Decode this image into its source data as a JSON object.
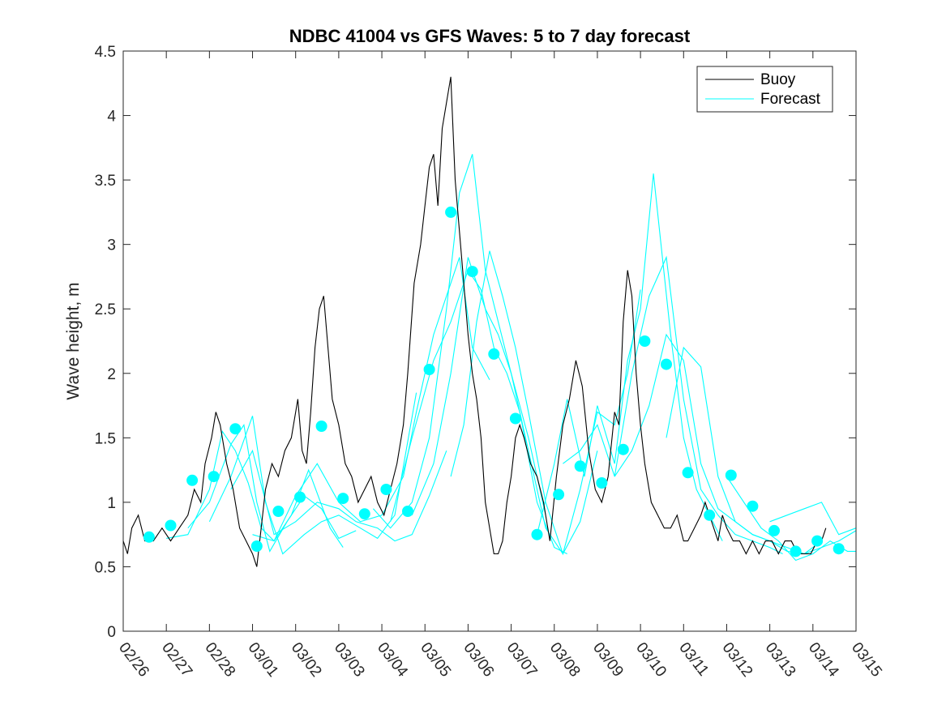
{
  "chart_data": {
    "type": "line",
    "title": "NDBC 41004 vs GFS Waves: 5 to 7 day forecast",
    "xlabel": "",
    "ylabel": "Wave height, m",
    "ylim": [
      0,
      4.5
    ],
    "xlim": [
      0,
      17
    ],
    "yticks": [
      0,
      0.5,
      1,
      1.5,
      2,
      2.5,
      3,
      3.5,
      4,
      4.5
    ],
    "ytick_labels": [
      "0",
      "0.5",
      "1",
      "1.5",
      "2",
      "2.5",
      "3",
      "3.5",
      "4",
      "4.5"
    ],
    "xtick_labels": [
      "02/26",
      "02/27",
      "02/28",
      "03/01",
      "03/02",
      "03/03",
      "03/04",
      "03/05",
      "03/06",
      "03/07",
      "03/08",
      "03/09",
      "03/10",
      "03/11",
      "03/12",
      "03/13",
      "03/14",
      "03/15"
    ],
    "legend": {
      "location": "top-right",
      "entries": [
        "Buoy",
        "Forecast"
      ]
    },
    "colors": {
      "buoy": "#000000",
      "forecast": "#00ffff"
    },
    "series": [
      {
        "name": "Buoy",
        "x": [
          0,
          0.1,
          0.2,
          0.35,
          0.5,
          0.7,
          0.9,
          1.1,
          1.3,
          1.5,
          1.65,
          1.8,
          1.9,
          2.05,
          2.15,
          2.25,
          2.4,
          2.55,
          2.7,
          2.85,
          3.0,
          3.1,
          3.2,
          3.3,
          3.45,
          3.6,
          3.75,
          3.9,
          4.05,
          4.15,
          4.25,
          4.35,
          4.45,
          4.55,
          4.65,
          4.75,
          4.85,
          5.0,
          5.15,
          5.3,
          5.45,
          5.6,
          5.75,
          5.9,
          6.05,
          6.2,
          6.35,
          6.5,
          6.6,
          6.75,
          6.9,
          7.0,
          7.1,
          7.2,
          7.3,
          7.4,
          7.5,
          7.6,
          7.7,
          7.8,
          7.9,
          8.0,
          8.1,
          8.2,
          8.3,
          8.4,
          8.5,
          8.6,
          8.7,
          8.8,
          8.9,
          9.0,
          9.1,
          9.2,
          9.3,
          9.45,
          9.6,
          9.75,
          9.9,
          10.05,
          10.2,
          10.35,
          10.5,
          10.65,
          10.8,
          10.95,
          11.1,
          11.25,
          11.4,
          11.5,
          11.6,
          11.7,
          11.8,
          11.9,
          12.0,
          12.1,
          12.25,
          12.4,
          12.55,
          12.7,
          12.85,
          13.0,
          13.1,
          13.25,
          13.4,
          13.5,
          13.6,
          13.7,
          13.8,
          13.9,
          14.0,
          14.15,
          14.3,
          14.45,
          14.6,
          14.75,
          14.9,
          15.05,
          15.2,
          15.35,
          15.5,
          15.65,
          15.8,
          15.95,
          16.1,
          16.2,
          16.3
        ],
        "y": [
          0.7,
          0.6,
          0.8,
          0.9,
          0.7,
          0.7,
          0.8,
          0.7,
          0.8,
          0.9,
          1.1,
          1.0,
          1.3,
          1.5,
          1.7,
          1.6,
          1.3,
          1.1,
          0.8,
          0.7,
          0.6,
          0.5,
          0.8,
          1.1,
          1.3,
          1.2,
          1.4,
          1.5,
          1.8,
          1.4,
          1.3,
          1.7,
          2.2,
          2.5,
          2.6,
          2.2,
          1.8,
          1.6,
          1.3,
          1.2,
          1.0,
          1.1,
          1.2,
          1.0,
          0.9,
          1.1,
          1.3,
          1.6,
          2.0,
          2.7,
          3.0,
          3.3,
          3.6,
          3.7,
          3.3,
          3.9,
          4.1,
          4.3,
          3.5,
          3.1,
          2.7,
          2.3,
          2.0,
          1.8,
          1.5,
          1.0,
          0.8,
          0.6,
          0.6,
          0.7,
          1.0,
          1.2,
          1.5,
          1.6,
          1.5,
          1.3,
          1.2,
          1.0,
          0.7,
          1.2,
          1.6,
          1.8,
          2.1,
          1.9,
          1.4,
          1.1,
          1.0,
          1.2,
          1.7,
          1.6,
          2.4,
          2.8,
          2.6,
          2.0,
          1.6,
          1.3,
          1.0,
          0.9,
          0.8,
          0.8,
          0.9,
          0.7,
          0.7,
          0.8,
          0.9,
          1.0,
          0.9,
          0.8,
          0.7,
          0.9,
          0.8,
          0.7,
          0.7,
          0.6,
          0.7,
          0.6,
          0.7,
          0.7,
          0.6,
          0.7,
          0.7,
          0.6,
          0.6,
          0.6,
          0.7,
          0.7,
          0.8
        ]
      },
      {
        "name": "Forecast",
        "runs": [
          {
            "x": [
              1.0,
              1.5,
              2.0,
              2.3,
              2.6,
              2.9,
              3.2,
              3.5,
              3.9,
              4.3,
              4.8,
              5.1
            ],
            "y": [
              0.72,
              0.75,
              1.1,
              1.55,
              1.4,
              1.15,
              0.8,
              0.7,
              0.9,
              1.25,
              0.8,
              0.65
            ]
          },
          {
            "x": [
              1.5,
              2.0,
              2.5,
              2.8,
              3.1,
              3.4,
              3.8,
              4.2,
              4.6,
              5.0,
              5.4
            ],
            "y": [
              0.8,
              1.0,
              1.45,
              1.6,
              1.0,
              0.62,
              0.85,
              1.05,
              0.95,
              0.72,
              0.78
            ]
          },
          {
            "x": [
              2.0,
              2.5,
              3.0,
              3.3,
              3.7,
              4.2,
              4.6,
              5.0,
              5.5,
              5.9,
              6.3,
              6.8
            ],
            "y": [
              0.85,
              1.2,
              1.67,
              1.0,
              0.6,
              0.75,
              0.85,
              0.9,
              0.8,
              0.72,
              0.9,
              1.85
            ]
          },
          {
            "x": [
              2.5,
              3.0,
              3.5,
              4.0,
              4.5,
              5.0,
              5.4,
              5.9,
              6.3,
              6.7,
              7.1,
              7.5
            ],
            "y": [
              1.1,
              1.4,
              0.75,
              0.85,
              1.0,
              0.95,
              0.85,
              0.8,
              0.7,
              0.75,
              1.05,
              1.4
            ]
          },
          {
            "x": [
              3.0,
              3.5,
              4.0,
              4.5,
              5.0,
              5.5,
              6.0,
              6.5,
              6.8,
              7.2,
              7.5,
              7.8,
              8.1,
              8.5
            ],
            "y": [
              0.75,
              0.7,
              1.05,
              1.3,
              1.0,
              0.85,
              0.9,
              1.2,
              1.7,
              2.3,
              2.6,
              2.9,
              2.2,
              1.95
            ]
          },
          {
            "x": [
              5.8,
              6.2,
              6.7,
              7.1,
              7.5,
              7.8,
              8.1,
              8.4,
              8.7,
              9.0,
              9.4,
              9.8
            ],
            "y": [
              0.95,
              0.8,
              1.0,
              1.5,
              2.5,
              3.4,
              3.7,
              2.8,
              2.4,
              2.0,
              1.5,
              0.9
            ]
          },
          {
            "x": [
              6.2,
              6.7,
              7.2,
              7.6,
              8.0,
              8.3,
              8.6,
              8.9,
              9.2,
              9.6,
              10.0,
              10.3
            ],
            "y": [
              0.85,
              1.5,
              2.1,
              2.4,
              2.8,
              2.65,
              2.2,
              2.0,
              1.7,
              1.0,
              0.65,
              0.6
            ]
          },
          {
            "x": [
              6.7,
              7.2,
              7.6,
              8.0,
              8.4,
              8.7,
              9.0,
              9.4,
              9.8,
              10.2,
              10.6,
              11.0
            ],
            "y": [
              0.9,
              1.3,
              2.0,
              2.9,
              2.5,
              2.3,
              2.0,
              1.4,
              0.8,
              0.6,
              0.85,
              1.4
            ]
          },
          {
            "x": [
              7.6,
              7.9,
              8.2,
              8.5,
              8.8,
              9.1,
              9.4,
              9.8,
              10.2,
              10.6,
              11.0,
              11.4,
              11.7,
              12.0
            ],
            "y": [
              1.2,
              1.6,
              2.4,
              2.95,
              2.6,
              2.2,
              1.7,
              1.0,
              0.6,
              1.1,
              1.7,
              1.6,
              2.0,
              2.65
            ]
          },
          {
            "x": [
              9.6,
              10.0,
              10.3,
              10.7,
              11.0,
              11.4,
              11.7,
              12.0,
              12.3,
              12.7,
              13.0,
              13.3,
              13.6,
              13.9
            ],
            "y": [
              0.75,
              1.3,
              1.8,
              1.2,
              1.75,
              1.3,
              2.1,
              2.5,
              3.55,
              2.3,
              1.5,
              1.1,
              0.9,
              0.7
            ]
          },
          {
            "x": [
              10.2,
              10.6,
              11.0,
              11.4,
              11.8,
              12.2,
              12.6,
              13.0,
              13.4,
              13.8,
              14.2,
              14.6,
              15.0,
              15.3
            ],
            "y": [
              1.3,
              1.4,
              1.6,
              1.2,
              2.0,
              2.6,
              2.9,
              1.8,
              1.1,
              0.9,
              0.75,
              0.7,
              0.65,
              0.6
            ]
          },
          {
            "x": [
              11.4,
              11.8,
              12.2,
              12.6,
              13.0,
              13.4,
              13.8,
              14.2,
              14.6,
              15.0,
              15.4,
              15.8,
              16.2
            ],
            "y": [
              1.2,
              1.4,
              1.75,
              2.3,
              2.1,
              1.3,
              0.95,
              0.85,
              0.75,
              0.7,
              0.65,
              0.6,
              0.7
            ]
          },
          {
            "x": [
              12.6,
              13.0,
              13.4,
              13.8,
              14.2,
              14.6,
              15.0,
              15.4,
              15.8,
              16.2,
              16.6,
              17.0
            ],
            "y": [
              1.5,
              2.2,
              2.05,
              1.2,
              0.85,
              0.75,
              0.7,
              0.62,
              0.6,
              0.65,
              0.7,
              0.78
            ]
          },
          {
            "x": [
              14.0,
              14.4,
              14.8,
              15.2,
              15.6,
              16.0,
              16.4,
              16.8,
              17.0
            ],
            "y": [
              1.2,
              1.0,
              0.8,
              0.7,
              0.55,
              0.6,
              0.7,
              0.62,
              0.62
            ]
          },
          {
            "x": [
              15.0,
              15.4,
              15.8,
              16.2,
              16.6,
              17.0
            ],
            "y": [
              0.85,
              0.9,
              0.95,
              1.0,
              0.75,
              0.8
            ]
          }
        ],
        "markers": {
          "x": [
            0.6,
            1.1,
            1.6,
            2.1,
            2.6,
            3.1,
            3.6,
            4.1,
            4.6,
            5.1,
            5.6,
            6.1,
            6.6,
            7.1,
            7.6,
            8.1,
            8.6,
            9.1,
            9.6,
            10.1,
            10.6,
            11.1,
            11.6,
            12.1,
            12.6,
            13.1,
            13.6,
            14.1,
            14.6,
            15.1,
            15.6,
            16.1,
            16.6
          ],
          "y": [
            0.73,
            0.82,
            1.17,
            1.2,
            1.57,
            0.66,
            0.93,
            1.04,
            1.59,
            1.03,
            0.91,
            1.1,
            0.93,
            2.03,
            3.25,
            2.79,
            2.15,
            1.65,
            0.75,
            1.06,
            1.28,
            1.15,
            1.41,
            2.25,
            2.07,
            1.23,
            0.9,
            1.21,
            0.97,
            0.78,
            0.62,
            0.7,
            0.64
          ]
        }
      }
    ]
  }
}
